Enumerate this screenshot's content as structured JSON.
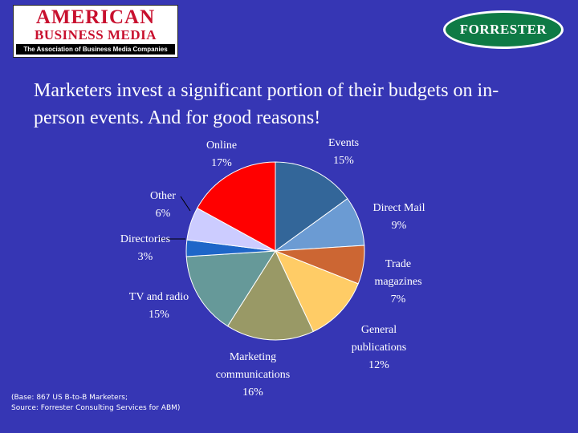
{
  "logos": {
    "abm": {
      "line1": "AMERICAN",
      "line2": "BUSINESS MEDIA",
      "tagline": "The Association of Business Media Companies"
    },
    "forrester": {
      "name": "FORRESTER"
    }
  },
  "title": "Marketers invest a significant portion of their budgets on in-person events. And for good reasons!",
  "source_note": {
    "line1": "(Base: 867 US B-to-B Marketers;",
    "line2": "Source: Forrester Consulting Services for ABM)"
  },
  "colors": {
    "background": "#3636b4",
    "text": "#ffffff",
    "abm_red": "#c8102e",
    "forrester_green": "#0e7a45"
  },
  "chart_data": {
    "type": "pie",
    "unit": "%",
    "slices": [
      {
        "label": [
          "Events"
        ],
        "value": 15,
        "color": "#336699"
      },
      {
        "label": [
          "Direct Mail"
        ],
        "value": 9,
        "color": "#6b9bd3"
      },
      {
        "label": [
          "Trade",
          "magazines"
        ],
        "value": 7,
        "color": "#cc6633"
      },
      {
        "label": [
          "General",
          "publications"
        ],
        "value": 12,
        "color": "#ffcc66"
      },
      {
        "label": [
          "Marketing",
          "communications"
        ],
        "value": 16,
        "color": "#999966"
      },
      {
        "label": [
          "TV and radio"
        ],
        "value": 15,
        "color": "#669999"
      },
      {
        "label": [
          "Directories"
        ],
        "value": 3,
        "color": "#1e66c8"
      },
      {
        "label": [
          "Other"
        ],
        "value": 6,
        "color": "#ccccff"
      },
      {
        "label": [
          "Online"
        ],
        "value": 17,
        "color": "#ff0000"
      }
    ]
  }
}
